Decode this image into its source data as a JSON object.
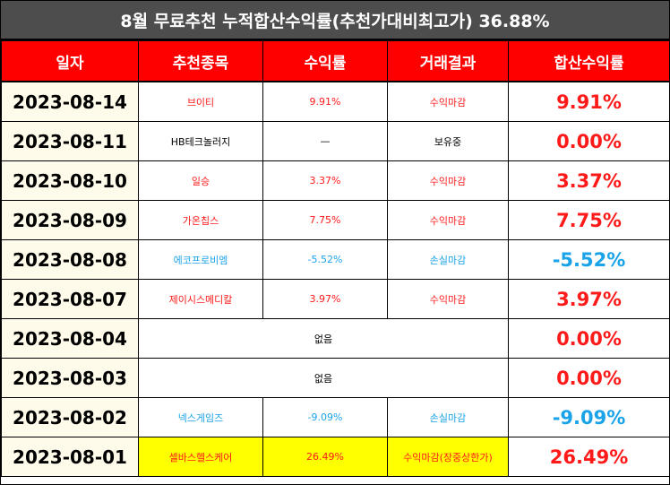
{
  "title": "8월 무료추천 누적합산수익률(추천가대비최고가) 36.88%",
  "headers": [
    "일자",
    "추천종목",
    "수익률",
    "거래결과",
    "합산수익률"
  ],
  "colors": {
    "header_bg": "#ff0000",
    "title_bg": "#4d4d4d",
    "red": "#ff1a1a",
    "blue": "#1aa3e8",
    "highlight": "#ffff00"
  },
  "rows": [
    {
      "date": "2023-08-14",
      "stock": "브이티",
      "rate": "9.91%",
      "result": "수익마감",
      "total": "9.91%",
      "color": "red"
    },
    {
      "date": "2023-08-11",
      "stock": "HB테크놀러지",
      "rate": "—",
      "result": "보유중",
      "total": "0.00%",
      "color": "black"
    },
    {
      "date": "2023-08-10",
      "stock": "일승",
      "rate": "3.37%",
      "result": "수익마감",
      "total": "3.37%",
      "color": "red"
    },
    {
      "date": "2023-08-09",
      "stock": "가온칩스",
      "rate": "7.75%",
      "result": "수익마감",
      "total": "7.75%",
      "color": "red"
    },
    {
      "date": "2023-08-08",
      "stock": "에코프로비엠",
      "rate": "-5.52%",
      "result": "손실마감",
      "total": "-5.52%",
      "color": "blue"
    },
    {
      "date": "2023-08-07",
      "stock": "제이시스메디칼",
      "rate": "3.97%",
      "result": "수익마감",
      "total": "3.97%",
      "color": "red"
    },
    {
      "date": "2023-08-04",
      "none": "없음",
      "total": "0.00%"
    },
    {
      "date": "2023-08-03",
      "none": "없음",
      "total": "0.00%"
    },
    {
      "date": "2023-08-02",
      "stock": "넥스게임즈",
      "rate": "-9.09%",
      "result": "손실마감",
      "total": "-9.09%",
      "color": "blue"
    },
    {
      "date": "2023-08-01",
      "stock": "셀바스헬스케어",
      "rate": "26.49%",
      "result": "수익마감(장중상한가)",
      "total": "26.49%",
      "color": "red",
      "highlight": true
    }
  ]
}
